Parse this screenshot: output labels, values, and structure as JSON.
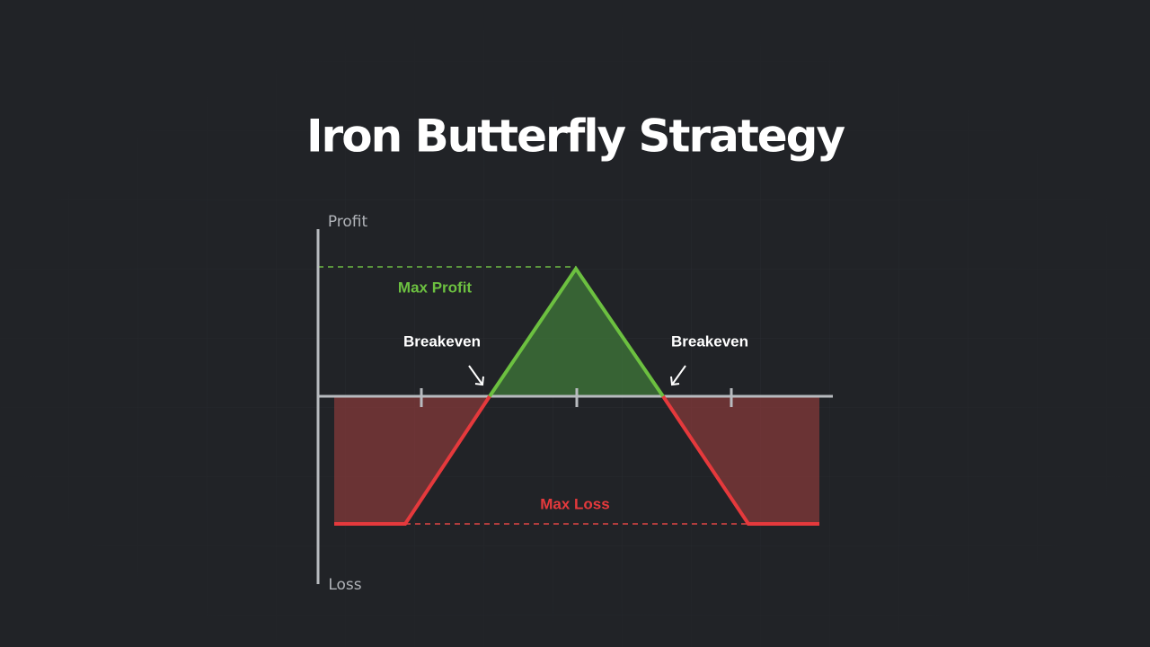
{
  "header": {
    "title": "Iron Butterfly Strategy"
  },
  "axes": {
    "top": "Profit",
    "bottom": "Loss"
  },
  "labels": {
    "max_profit": "Max Profit",
    "max_loss": "Max Loss",
    "breakeven_left": "Breakeven",
    "breakeven_right": "Breakeven"
  }
}
